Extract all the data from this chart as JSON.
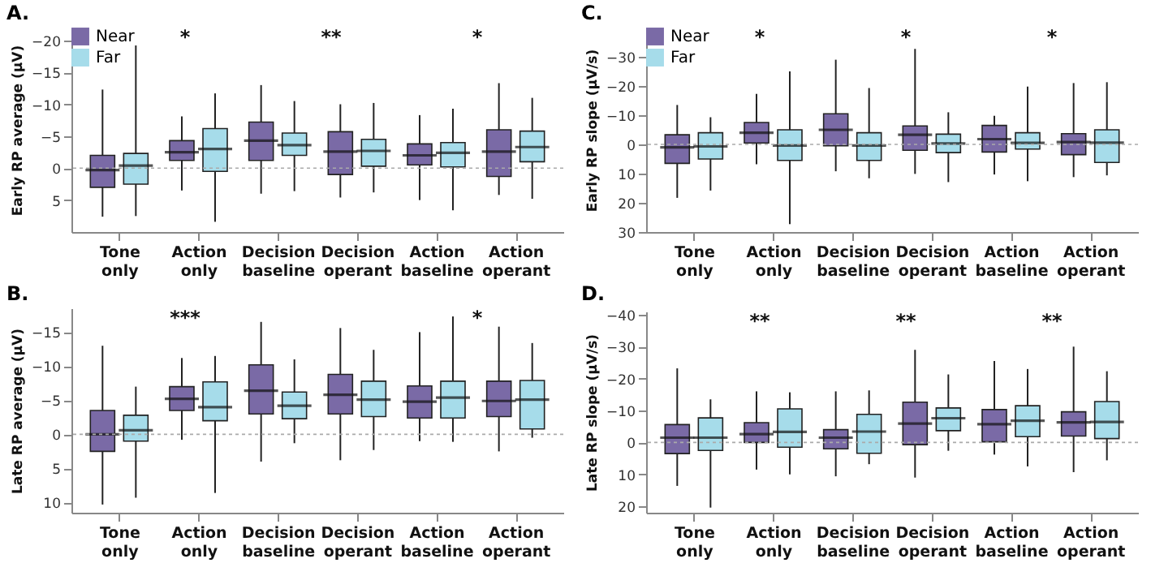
{
  "chart_data": [
    {
      "type": "box",
      "title": "A.",
      "ylabel": "Early RP average (μV)",
      "categories": [
        "Tone only",
        "Action only",
        "Decision baseline",
        "Decision operant",
        "Action baseline",
        "Action operant"
      ],
      "ylim": [
        10,
        -22
      ],
      "yticks": [
        -20,
        -15,
        -10,
        -5,
        0,
        5
      ],
      "legend": "top left",
      "annotations": [
        "*",
        "**",
        "*"
      ],
      "ref_lines": [
        {
          "axis": "y",
          "value": 0,
          "color": "#aaaaaa",
          "line_style": "dotted"
        }
      ],
      "series": [
        {
          "name": "Near",
          "color": "#7a6aa6",
          "boxes": [
            {
              "low": -12.3,
              "q1": -2,
              "median": 0.3,
              "q3": 3,
              "high": 7.6
            },
            {
              "low": -8.1,
              "q1": -4.3,
              "median": -2.5,
              "q3": -1.2,
              "high": 3.5
            },
            {
              "low": -13,
              "q1": -7.2,
              "median": -4.3,
              "q3": -1.2,
              "high": 4
            },
            {
              "low": -10,
              "q1": -5.7,
              "median": -2.6,
              "q3": 1,
              "high": 4.6
            },
            {
              "low": -8.3,
              "q1": -3.8,
              "median": -2,
              "q3": -0.5,
              "high": 5
            },
            {
              "low": -13.3,
              "q1": -6,
              "median": -2.6,
              "q3": 1.3,
              "high": 4.2
            }
          ]
        },
        {
          "name": "Far",
          "color": "#a6dcea",
          "boxes": [
            {
              "low": -19.2,
              "q1": -2.3,
              "median": -0.4,
              "q3": 2.5,
              "high": 7.5
            },
            {
              "low": -11.7,
              "q1": -6.2,
              "median": -3,
              "q3": 0.5,
              "high": 8.4
            },
            {
              "low": -10.5,
              "q1": -5.5,
              "median": -3.6,
              "q3": -2,
              "high": 3.6
            },
            {
              "low": -10.2,
              "q1": -4.5,
              "median": -2.7,
              "q3": -0.3,
              "high": 3.8
            },
            {
              "low": -9.3,
              "q1": -4,
              "median": -2.4,
              "q3": -0.2,
              "high": 6.6
            },
            {
              "low": -11,
              "q1": -5.8,
              "median": -3.3,
              "q3": -1,
              "high": 4.8
            }
          ]
        }
      ]
    },
    {
      "type": "box",
      "title": "C.",
      "ylabel": "Early RP slope (μV/s)",
      "categories": [
        "Tone only",
        "Action only",
        "Decision baseline",
        "Decision operant",
        "Action baseline",
        "Action operant"
      ],
      "ylim": [
        30,
        -40
      ],
      "yticks": [
        -30,
        -20,
        -10,
        0,
        10,
        20,
        30
      ],
      "legend": "top left",
      "annotations": [
        "*",
        "*",
        "*"
      ],
      "ref_lines": [
        {
          "axis": "y",
          "value": 0,
          "color": "#aaaaaa",
          "line_style": "dotted"
        }
      ],
      "series": [
        {
          "name": "Near",
          "color": "#7a6aa6",
          "boxes": [
            {
              "low": -13.5,
              "q1": -3.3,
              "median": 1,
              "q3": 6.5,
              "high": 18.3
            },
            {
              "low": -17.3,
              "q1": -7.5,
              "median": -4,
              "q3": -0.5,
              "high": 6.8
            },
            {
              "low": -29,
              "q1": -10.5,
              "median": -5,
              "q3": 0.5,
              "high": 9.2
            },
            {
              "low": -32.7,
              "q1": -6.3,
              "median": -3.3,
              "q3": 2,
              "high": 10.1
            },
            {
              "low": -9.8,
              "q1": -6.5,
              "median": -1.8,
              "q3": 2.6,
              "high": 10.3
            },
            {
              "low": -21,
              "q1": -3.7,
              "median": -0.8,
              "q3": 3.5,
              "high": 11.2
            }
          ]
        },
        {
          "name": "Far",
          "color": "#a6dcea",
          "boxes": [
            {
              "low": -9.3,
              "q1": -4,
              "median": 0.7,
              "q3": 5,
              "high": 15.8
            },
            {
              "low": -25,
              "q1": -5,
              "median": 0.4,
              "q3": 5.5,
              "high": 27.3
            },
            {
              "low": -19.3,
              "q1": -4,
              "median": 0.4,
              "q3": 5.5,
              "high": 11.6
            },
            {
              "low": -11,
              "q1": -3.5,
              "median": -0.3,
              "q3": 2.8,
              "high": 12.9
            },
            {
              "low": -19.8,
              "q1": -4,
              "median": -0.5,
              "q3": 1.6,
              "high": 12.6
            },
            {
              "low": -21.3,
              "q1": -5,
              "median": -0.6,
              "q3": 6.2,
              "high": 10.6
            }
          ]
        }
      ]
    },
    {
      "type": "box",
      "title": "B.",
      "ylabel": "Late RP average (μV)",
      "categories": [
        "Tone only",
        "Action only",
        "Decision baseline",
        "Decision operant",
        "Action baseline",
        "Action operant"
      ],
      "ylim": [
        11.5,
        -18.5
      ],
      "yticks": [
        -15,
        -10,
        -5,
        0,
        5,
        10
      ],
      "annotations": [
        "***",
        "*"
      ],
      "ref_lines": [
        {
          "axis": "y",
          "value": 0,
          "color": "#aaaaaa",
          "line_style": "dotted"
        }
      ],
      "series": [
        {
          "color": "#7a6aa6",
          "boxes": [
            {
              "low": -13,
              "q1": -3.5,
              "median": 0,
              "q3": 2.5,
              "high": 10.3
            },
            {
              "low": -11.2,
              "q1": -7,
              "median": -5.2,
              "q3": -3.5,
              "high": 0.8
            },
            {
              "low": -16.5,
              "q1": -10.2,
              "median": -6.4,
              "q3": -3,
              "high": 4
            },
            {
              "low": -15.6,
              "q1": -8.8,
              "median": -5.8,
              "q3": -3,
              "high": 3.8
            },
            {
              "low": -15,
              "q1": -7.1,
              "median": -4.8,
              "q3": -2.4,
              "high": 1
            },
            {
              "low": -15.8,
              "q1": -7.8,
              "median": -4.9,
              "q3": -2.6,
              "high": 2.5
            }
          ]
        },
        {
          "color": "#a6dcea",
          "boxes": [
            {
              "low": -7,
              "q1": -2.8,
              "median": -0.6,
              "q3": 1,
              "high": 9.3
            },
            {
              "low": -11.5,
              "q1": -7.7,
              "median": -4,
              "q3": -2,
              "high": 8.6
            },
            {
              "low": -11,
              "q1": -6.2,
              "median": -4.2,
              "q3": -2.3,
              "high": 1.3
            },
            {
              "low": -12.4,
              "q1": -7.8,
              "median": -5.1,
              "q3": -2.6,
              "high": 2.3
            },
            {
              "low": -17.3,
              "q1": -7.8,
              "median": -5.4,
              "q3": -2.4,
              "high": 1.1
            },
            {
              "low": -13.4,
              "q1": -7.9,
              "median": -5.1,
              "q3": -0.8,
              "high": 0.5
            }
          ]
        }
      ]
    },
    {
      "type": "box",
      "title": "D.",
      "ylabel": "Late RP slope (μV/s)",
      "categories": [
        "Tone only",
        "Action only",
        "Decision baseline",
        "Decision operant",
        "Action baseline",
        "Action operant"
      ],
      "ylim": [
        22,
        -41
      ],
      "yticks": [
        -40,
        -30,
        -20,
        -10,
        0,
        10,
        20
      ],
      "annotations": [
        "**",
        "**",
        "**"
      ],
      "ref_lines": [
        {
          "axis": "y",
          "value": 0,
          "color": "#aaaaaa",
          "line_style": "dotted"
        }
      ],
      "series": [
        {
          "color": "#7a6aa6",
          "boxes": [
            {
              "low": -23.2,
              "q1": -5.6,
              "median": -1.5,
              "q3": 3.5,
              "high": 13.6
            },
            {
              "low": -16,
              "q1": -6.2,
              "median": -2.6,
              "q3": 0,
              "high": 8.5
            },
            {
              "low": -16,
              "q1": -4,
              "median": -1.5,
              "q3": 2,
              "high": 10.6
            },
            {
              "low": -29,
              "q1": -12.6,
              "median": -5.9,
              "q3": 0.7,
              "high": 11
            },
            {
              "low": -25.5,
              "q1": -10.3,
              "median": -5.7,
              "q3": -0.2,
              "high": 3.8
            },
            {
              "low": -30,
              "q1": -9.6,
              "median": -6.3,
              "q3": -2,
              "high": 9.3
            }
          ]
        },
        {
          "color": "#a6dcea",
          "boxes": [
            {
              "low": -13.5,
              "q1": -7.7,
              "median": -1.5,
              "q3": 2.5,
              "high": 20.4
            },
            {
              "low": -15.7,
              "q1": -10.5,
              "median": -3.3,
              "q3": 1.5,
              "high": 10
            },
            {
              "low": -16.3,
              "q1": -8.8,
              "median": -3.4,
              "q3": 3.4,
              "high": 6.8
            },
            {
              "low": -21.3,
              "q1": -10.8,
              "median": -7.6,
              "q3": -3.7,
              "high": 2.6
            },
            {
              "low": -23,
              "q1": -11.5,
              "median": -6.8,
              "q3": -1.8,
              "high": 7.5
            },
            {
              "low": -22.3,
              "q1": -12.8,
              "median": -6.4,
              "q3": -1.2,
              "high": 5.6
            }
          ]
        }
      ]
    }
  ]
}
